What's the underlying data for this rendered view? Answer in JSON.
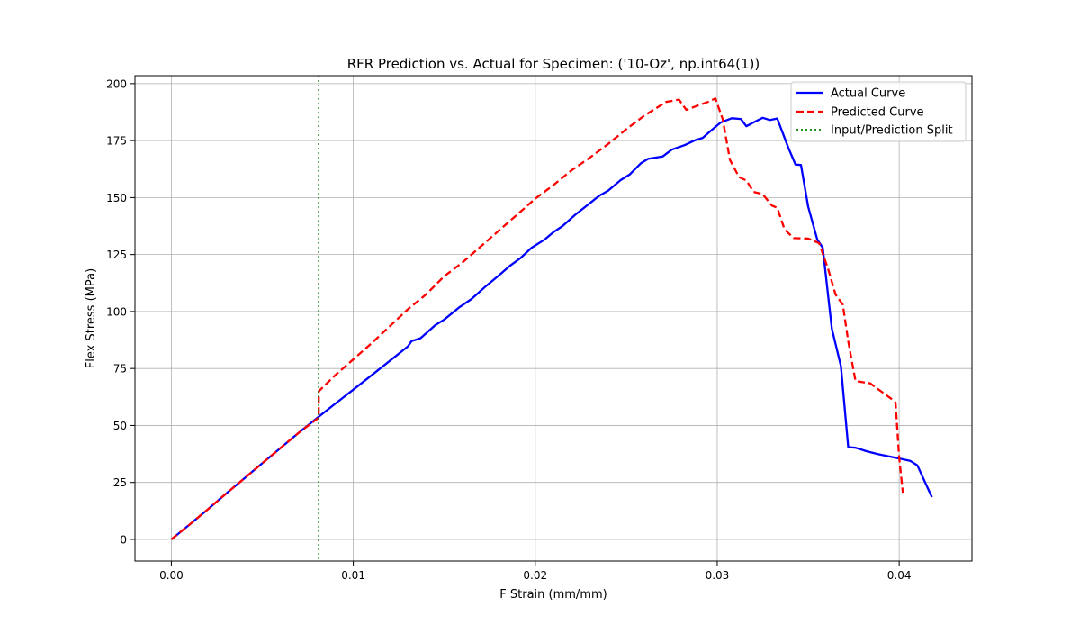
{
  "chart_data": {
    "type": "line",
    "title": "RFR Prediction vs. Actual for Specimen: ('10-Oz', np.int64(1))",
    "xlabel": "F Strain (mm/mm)",
    "ylabel": "Flex Stress (MPa)",
    "xlim": [
      -0.002,
      0.044
    ],
    "ylim": [
      -9.5,
      203.5
    ],
    "x_ticks": [
      0.0,
      0.01,
      0.02,
      0.03,
      0.04
    ],
    "x_tick_labels": [
      "0.00",
      "0.01",
      "0.02",
      "0.03",
      "0.04"
    ],
    "y_ticks": [
      0,
      25,
      50,
      75,
      100,
      125,
      150,
      175,
      200
    ],
    "y_tick_labels": [
      "0",
      "25",
      "50",
      "75",
      "100",
      "125",
      "150",
      "175",
      "200"
    ],
    "grid": true,
    "legend_position": "top-right",
    "colors": {
      "actual": "#0000ff",
      "predicted": "#ff0000",
      "split": "#008000"
    },
    "series": [
      {
        "name": "Actual Curve",
        "style": "solid",
        "color": "#0000ff",
        "points": [
          [
            0.0,
            0.0
          ],
          [
            0.001,
            6.5
          ],
          [
            0.002,
            13.2
          ],
          [
            0.003,
            20.0
          ],
          [
            0.004,
            26.7
          ],
          [
            0.005,
            33.4
          ],
          [
            0.006,
            40.1
          ],
          [
            0.007,
            46.8
          ],
          [
            0.008,
            53.2
          ],
          [
            0.009,
            59.5
          ],
          [
            0.01,
            65.7
          ],
          [
            0.011,
            72.0
          ],
          [
            0.012,
            78.3
          ],
          [
            0.013,
            84.7
          ],
          [
            0.0132,
            87.0
          ],
          [
            0.0137,
            88.3
          ],
          [
            0.0145,
            94.0
          ],
          [
            0.015,
            96.5
          ],
          [
            0.0158,
            101.7
          ],
          [
            0.0165,
            105.5
          ],
          [
            0.0172,
            110.5
          ],
          [
            0.018,
            115.8
          ],
          [
            0.0186,
            120.0
          ],
          [
            0.0192,
            123.5
          ],
          [
            0.0198,
            128.0
          ],
          [
            0.0205,
            131.5
          ],
          [
            0.021,
            134.8
          ],
          [
            0.0215,
            137.5
          ],
          [
            0.0222,
            142.5
          ],
          [
            0.023,
            147.5
          ],
          [
            0.0235,
            150.7
          ],
          [
            0.024,
            153.0
          ],
          [
            0.0247,
            157.7
          ],
          [
            0.0252,
            160.2
          ],
          [
            0.0258,
            165.0
          ],
          [
            0.0262,
            167.0
          ],
          [
            0.027,
            168.0
          ],
          [
            0.0275,
            171.0
          ],
          [
            0.0282,
            173.0
          ],
          [
            0.0288,
            175.2
          ],
          [
            0.0292,
            176.2
          ],
          [
            0.0296,
            179.0
          ],
          [
            0.0302,
            183.0
          ],
          [
            0.0308,
            184.8
          ],
          [
            0.0313,
            184.5
          ],
          [
            0.0316,
            181.3
          ],
          [
            0.032,
            183.0
          ],
          [
            0.0325,
            185.0
          ],
          [
            0.0329,
            184.0
          ],
          [
            0.0333,
            184.7
          ],
          [
            0.0339,
            172.0
          ],
          [
            0.0343,
            164.5
          ],
          [
            0.0346,
            164.3
          ],
          [
            0.035,
            146.0
          ],
          [
            0.0355,
            131.5
          ],
          [
            0.0358,
            128.0
          ],
          [
            0.0363,
            92.5
          ],
          [
            0.0368,
            76.0
          ],
          [
            0.0372,
            40.5
          ],
          [
            0.0376,
            40.2
          ],
          [
            0.0382,
            38.7
          ],
          [
            0.0388,
            37.5
          ],
          [
            0.0394,
            36.5
          ],
          [
            0.04,
            35.5
          ],
          [
            0.0406,
            34.5
          ],
          [
            0.041,
            32.5
          ],
          [
            0.0418,
            18.5
          ]
        ]
      },
      {
        "name": "Predicted Curve",
        "style": "dashed",
        "color": "#ff0000",
        "points": [
          [
            0.0,
            0.0
          ],
          [
            0.001,
            6.5
          ],
          [
            0.002,
            13.2
          ],
          [
            0.003,
            20.0
          ],
          [
            0.004,
            26.7
          ],
          [
            0.005,
            33.4
          ],
          [
            0.006,
            40.1
          ],
          [
            0.007,
            46.8
          ],
          [
            0.0081,
            53.4
          ],
          [
            0.0081,
            65.0
          ],
          [
            0.009,
            72.0
          ],
          [
            0.01,
            79.0
          ],
          [
            0.011,
            86.0
          ],
          [
            0.012,
            93.5
          ],
          [
            0.013,
            101.0
          ],
          [
            0.014,
            107.5
          ],
          [
            0.015,
            115.5
          ],
          [
            0.016,
            121.5
          ],
          [
            0.017,
            128.5
          ],
          [
            0.018,
            135.5
          ],
          [
            0.019,
            142.5
          ],
          [
            0.02,
            149.5
          ],
          [
            0.021,
            155.5
          ],
          [
            0.022,
            162.0
          ],
          [
            0.023,
            167.5
          ],
          [
            0.024,
            173.5
          ],
          [
            0.025,
            180.0
          ],
          [
            0.026,
            186.0
          ],
          [
            0.0265,
            188.5
          ],
          [
            0.0272,
            192.0
          ],
          [
            0.0279,
            193.0
          ],
          [
            0.0283,
            188.5
          ],
          [
            0.0288,
            190.0
          ],
          [
            0.0295,
            192.0
          ],
          [
            0.0299,
            193.5
          ],
          [
            0.0303,
            184.5
          ],
          [
            0.0307,
            166.5
          ],
          [
            0.0312,
            159.0
          ],
          [
            0.0316,
            157.5
          ],
          [
            0.032,
            152.5
          ],
          [
            0.0325,
            151.5
          ],
          [
            0.033,
            146.5
          ],
          [
            0.0333,
            145.5
          ],
          [
            0.0337,
            136.0
          ],
          [
            0.0342,
            132.2
          ],
          [
            0.035,
            132.0
          ],
          [
            0.0356,
            130.0
          ],
          [
            0.0361,
            118.5
          ],
          [
            0.0365,
            107.5
          ],
          [
            0.0369,
            103.0
          ],
          [
            0.0372,
            87.0
          ],
          [
            0.0376,
            69.5
          ],
          [
            0.0384,
            68.5
          ],
          [
            0.039,
            65.0
          ],
          [
            0.0396,
            61.5
          ],
          [
            0.0398,
            60.0
          ],
          [
            0.04,
            36.0
          ],
          [
            0.0402,
            20.5
          ]
        ]
      },
      {
        "name": "Input/Prediction Split",
        "style": "dotted",
        "color": "#008000",
        "vertical_x": 0.0081
      }
    ]
  }
}
